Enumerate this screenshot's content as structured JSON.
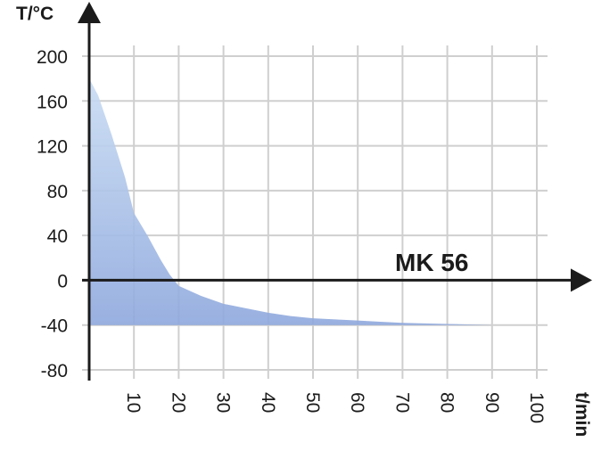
{
  "chart_data": {
    "type": "area",
    "title": "",
    "ylabel": "T/°C",
    "xlabel": "t/min",
    "annotation": "MK 56",
    "xlim": [
      0,
      100
    ],
    "ylim": [
      -80,
      200
    ],
    "grid": true,
    "x_ticks": [
      10,
      20,
      30,
      40,
      50,
      60,
      70,
      80,
      90,
      100
    ],
    "y_ticks": [
      200,
      160,
      120,
      80,
      40,
      0,
      -40,
      -80
    ],
    "series": [
      {
        "x": [
          0,
          2,
          5,
          8,
          10,
          13,
          16,
          18,
          20,
          25,
          30,
          35,
          40,
          45,
          50,
          55,
          60,
          65,
          70,
          75,
          80,
          85,
          90
        ],
        "values": [
          180,
          165,
          130,
          92,
          60,
          40,
          18,
          5,
          -5,
          -14,
          -21,
          -25,
          -29,
          -32,
          -34,
          -35,
          -36,
          -37,
          -38,
          -38.5,
          -39,
          -39.5,
          -40
        ]
      }
    ],
    "fill_baseline": -40,
    "colors": {
      "fill_top": "#c9dcf3",
      "fill_bottom": "#8ea8dd",
      "grid": "#cfcfcf",
      "axis": "#1b1b1b"
    }
  }
}
